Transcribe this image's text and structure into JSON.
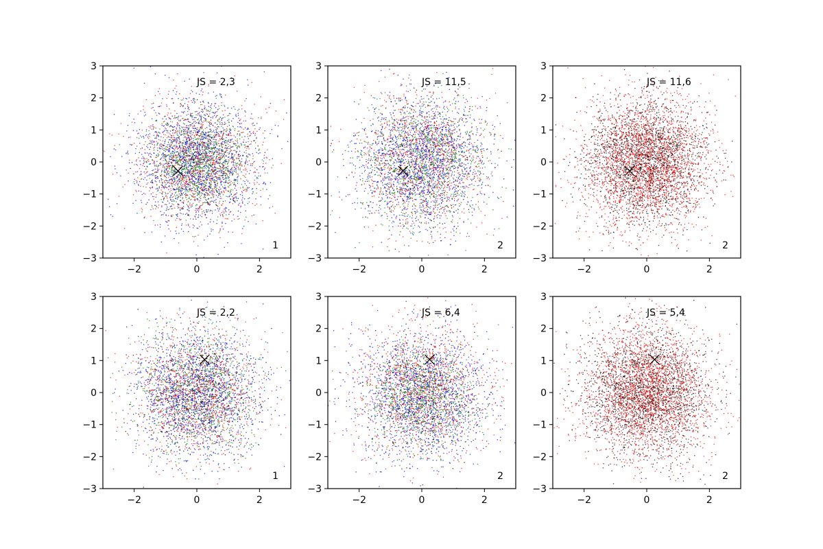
{
  "figure": {
    "background": "#ffffff"
  },
  "chart_data": [
    {
      "type": "scatter",
      "annotation": "JS = 2,3",
      "corner_label": "1",
      "xlim": [
        -3,
        3
      ],
      "ylim": [
        -3,
        3
      ],
      "x_ticks": [
        {
          "value": -2,
          "label": "−2"
        },
        {
          "value": 0,
          "label": "0"
        },
        {
          "value": 2,
          "label": "2"
        }
      ],
      "y_ticks": [
        {
          "value": -3,
          "label": "−3"
        },
        {
          "value": -2,
          "label": "−2"
        },
        {
          "value": -1,
          "label": "−1"
        },
        {
          "value": 0,
          "label": "0"
        },
        {
          "value": 1,
          "label": "1"
        },
        {
          "value": 2,
          "label": "2"
        },
        {
          "value": 3,
          "label": "3"
        }
      ],
      "marker": {
        "x": -0.6,
        "y": -0.28,
        "symbol": "x",
        "color": "#000000"
      },
      "series": [
        {
          "color": "#0000ff",
          "count": 1400,
          "center": [
            0,
            0
          ],
          "spread": 1.0
        },
        {
          "color": "#ff0000",
          "count": 1100,
          "center": [
            0,
            0
          ],
          "spread": 0.95
        },
        {
          "color": "#008000",
          "count": 1100,
          "center": [
            0.1,
            0
          ],
          "spread": 0.8
        },
        {
          "color": "#000000",
          "count": 500,
          "center": [
            0,
            0
          ],
          "spread": 0.85
        }
      ]
    },
    {
      "type": "scatter",
      "annotation": "JS = 11,5",
      "corner_label": "2",
      "xlim": [
        -3,
        3
      ],
      "ylim": [
        -3,
        3
      ],
      "x_ticks": [
        {
          "value": -2,
          "label": "−2"
        },
        {
          "value": 0,
          "label": "0"
        },
        {
          "value": 2,
          "label": "2"
        }
      ],
      "y_ticks": [
        {
          "value": -3,
          "label": "−3"
        },
        {
          "value": -2,
          "label": "−2"
        },
        {
          "value": -1,
          "label": "−1"
        },
        {
          "value": 0,
          "label": "0"
        },
        {
          "value": 1,
          "label": "1"
        },
        {
          "value": 2,
          "label": "2"
        },
        {
          "value": 3,
          "label": "3"
        }
      ],
      "marker": {
        "x": -0.6,
        "y": -0.28,
        "symbol": "x",
        "color": "#000000"
      },
      "series": [
        {
          "color": "#0000ff",
          "count": 1400,
          "center": [
            0,
            0
          ],
          "spread": 1.0
        },
        {
          "color": "#ff0000",
          "count": 1100,
          "center": [
            0,
            0
          ],
          "spread": 1.0
        },
        {
          "color": "#008000",
          "count": 1100,
          "center": [
            0,
            0
          ],
          "spread": 1.05
        },
        {
          "color": "#000000",
          "count": 400,
          "center": [
            0,
            0
          ],
          "spread": 1.0
        }
      ]
    },
    {
      "type": "scatter",
      "annotation": "JS = 11,6",
      "corner_label": "2",
      "xlim": [
        -3,
        3
      ],
      "ylim": [
        -3,
        3
      ],
      "x_ticks": [
        {
          "value": -2,
          "label": "−2"
        },
        {
          "value": 0,
          "label": "0"
        },
        {
          "value": 2,
          "label": "2"
        }
      ],
      "y_ticks": [
        {
          "value": -3,
          "label": "−3"
        },
        {
          "value": -2,
          "label": "−2"
        },
        {
          "value": -1,
          "label": "−1"
        },
        {
          "value": 0,
          "label": "0"
        },
        {
          "value": 1,
          "label": "1"
        },
        {
          "value": 2,
          "label": "2"
        },
        {
          "value": 3,
          "label": "3"
        }
      ],
      "marker": {
        "x": -0.55,
        "y": -0.28,
        "symbol": "x",
        "color": "#000000"
      },
      "series": [
        {
          "color": "#ff0000",
          "count": 2600,
          "center": [
            0,
            0
          ],
          "spread": 1.0
        },
        {
          "color": "#000000",
          "count": 2000,
          "center": [
            0,
            0
          ],
          "spread": 0.95
        }
      ]
    },
    {
      "type": "scatter",
      "annotation": "JS = 2,2",
      "corner_label": "1",
      "xlim": [
        -3,
        3
      ],
      "ylim": [
        -3,
        3
      ],
      "x_ticks": [
        {
          "value": -2,
          "label": "−2"
        },
        {
          "value": 0,
          "label": "0"
        },
        {
          "value": 2,
          "label": "2"
        }
      ],
      "y_ticks": [
        {
          "value": -3,
          "label": "−3"
        },
        {
          "value": -2,
          "label": "−2"
        },
        {
          "value": -1,
          "label": "−1"
        },
        {
          "value": 0,
          "label": "0"
        },
        {
          "value": 1,
          "label": "1"
        },
        {
          "value": 2,
          "label": "2"
        },
        {
          "value": 3,
          "label": "3"
        }
      ],
      "marker": {
        "x": 0.25,
        "y": 1.03,
        "symbol": "x",
        "color": "#000000"
      },
      "series": [
        {
          "color": "#0000ff",
          "count": 1400,
          "center": [
            0,
            0
          ],
          "spread": 1.0
        },
        {
          "color": "#ff0000",
          "count": 1100,
          "center": [
            0,
            0
          ],
          "spread": 0.95
        },
        {
          "color": "#008000",
          "count": 1000,
          "center": [
            0,
            0
          ],
          "spread": 1.0
        },
        {
          "color": "#000000",
          "count": 600,
          "center": [
            0,
            0
          ],
          "spread": 0.95
        }
      ]
    },
    {
      "type": "scatter",
      "annotation": "JS = 6,4",
      "corner_label": "2",
      "xlim": [
        -3,
        3
      ],
      "ylim": [
        -3,
        3
      ],
      "x_ticks": [
        {
          "value": -2,
          "label": "−2"
        },
        {
          "value": 0,
          "label": "0"
        },
        {
          "value": 2,
          "label": "2"
        }
      ],
      "y_ticks": [
        {
          "value": -3,
          "label": "−3"
        },
        {
          "value": -2,
          "label": "−2"
        },
        {
          "value": -1,
          "label": "−1"
        },
        {
          "value": 0,
          "label": "0"
        },
        {
          "value": 1,
          "label": "1"
        },
        {
          "value": 2,
          "label": "2"
        },
        {
          "value": 3,
          "label": "3"
        }
      ],
      "marker": {
        "x": 0.25,
        "y": 1.03,
        "symbol": "x",
        "color": "#000000"
      },
      "series": [
        {
          "color": "#0000ff",
          "count": 1400,
          "center": [
            0,
            -0.1
          ],
          "spread": 1.05
        },
        {
          "color": "#ff0000",
          "count": 1200,
          "center": [
            0,
            0.1
          ],
          "spread": 1.0
        },
        {
          "color": "#008000",
          "count": 1000,
          "center": [
            0,
            -0.1
          ],
          "spread": 0.85
        },
        {
          "color": "#000000",
          "count": 400,
          "center": [
            0,
            0
          ],
          "spread": 1.0
        }
      ]
    },
    {
      "type": "scatter",
      "annotation": "JS = 5,4",
      "corner_label": "2",
      "xlim": [
        -3,
        3
      ],
      "ylim": [
        -3,
        3
      ],
      "x_ticks": [
        {
          "value": -2,
          "label": "−2"
        },
        {
          "value": 0,
          "label": "0"
        },
        {
          "value": 2,
          "label": "2"
        }
      ],
      "y_ticks": [
        {
          "value": -3,
          "label": "−3"
        },
        {
          "value": -2,
          "label": "−2"
        },
        {
          "value": -1,
          "label": "−1"
        },
        {
          "value": 0,
          "label": "0"
        },
        {
          "value": 1,
          "label": "1"
        },
        {
          "value": 2,
          "label": "2"
        },
        {
          "value": 3,
          "label": "3"
        }
      ],
      "marker": {
        "x": 0.25,
        "y": 1.03,
        "symbol": "x",
        "color": "#000000"
      },
      "series": [
        {
          "color": "#ff0000",
          "count": 2600,
          "center": [
            0,
            0
          ],
          "spread": 1.0
        },
        {
          "color": "#000000",
          "count": 2000,
          "center": [
            0,
            0
          ],
          "spread": 1.0
        }
      ]
    }
  ]
}
